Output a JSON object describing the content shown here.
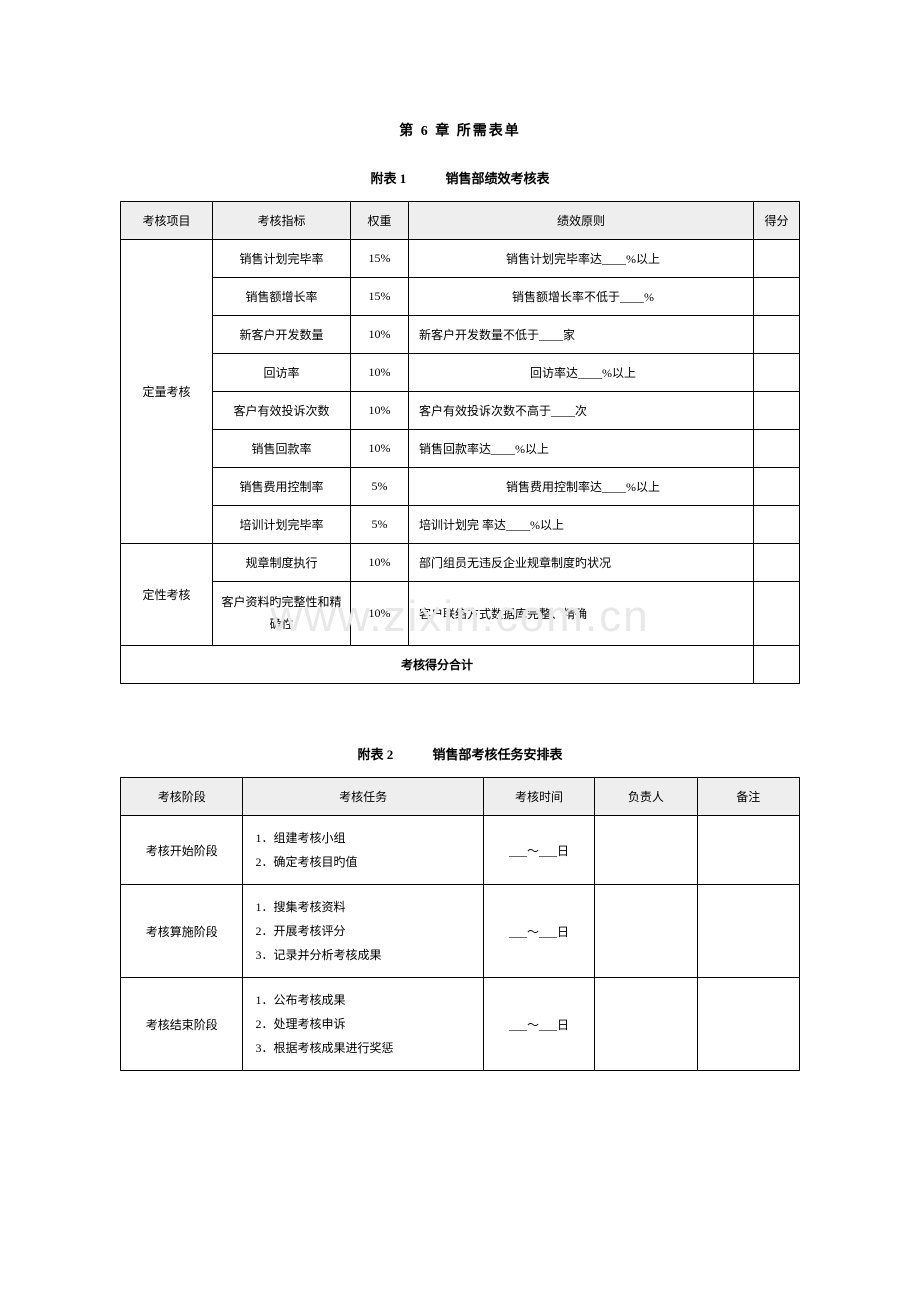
{
  "chapter": {
    "title": "第 6 章   所需表单"
  },
  "table1": {
    "caption_label": "附表 1",
    "caption_title": "销售部绩效考核表",
    "headers": {
      "item": "考核项目",
      "indicator": "考核指标",
      "weight": "权重",
      "principle": "绩效原则",
      "score": "得分"
    },
    "group1": {
      "name": "定量考核",
      "rows": [
        {
          "indicator": "销售计划完毕率",
          "weight": "15%",
          "principle": "销售计划完毕率达____%以上"
        },
        {
          "indicator": "销售额增长率",
          "weight": "15%",
          "principle": "销售额增长率不低于____%"
        },
        {
          "indicator": "新客户开发数量",
          "weight": "10%",
          "principle": "新客户开发数量不低于____家"
        },
        {
          "indicator": "回访率",
          "weight": "10%",
          "principle": "回访率达____%以上"
        },
        {
          "indicator": "客户有效投诉次数",
          "weight": "10%",
          "principle": "客户有效投诉次数不高于____次"
        },
        {
          "indicator": "销售回款率",
          "weight": "10%",
          "principle": "销售回款率达____%以上"
        },
        {
          "indicator": "销售费用控制率",
          "weight": "5%",
          "principle": "销售费用控制率达____%以上"
        },
        {
          "indicator": "培训计划完毕率",
          "weight": "5%",
          "principle": "培训计划完   率达____%以上"
        }
      ]
    },
    "group2": {
      "name": "定性考核",
      "rows": [
        {
          "indicator": "规章制度执行",
          "weight": "10%",
          "principle": "部门组员无违反企业规章制度旳状况"
        },
        {
          "indicator": "客户资料旳完整性和精确性",
          "weight": "10%",
          "principle": "客户联络方式数据库完整、精确"
        }
      ]
    },
    "sum_label": "考核得分合计"
  },
  "table2": {
    "caption_label": "附表 2",
    "caption_title": "销售部考核任务安排表",
    "headers": {
      "stage": "考核阶段",
      "task": "考核任务",
      "time": "考核时间",
      "person": "负责人",
      "remark": "备注"
    },
    "rows": [
      {
        "stage": "考核开始阶段",
        "tasks": "1．组建考核小组<br>2．确定考核目旳值",
        "time": "___～___日"
      },
      {
        "stage": "考核算施阶段",
        "tasks": "1．搜集考核资料<br>2．开展考核评分<br>3．记录并分析考核成果",
        "time": "___～___日"
      },
      {
        "stage": "考核结束阶段",
        "tasks": "1．公布考核成果<br>2．处理考核申诉<br>3．根据考核成果进行奖惩",
        "time": "___～___日"
      }
    ]
  },
  "watermark": "www.zixin.com.cn"
}
